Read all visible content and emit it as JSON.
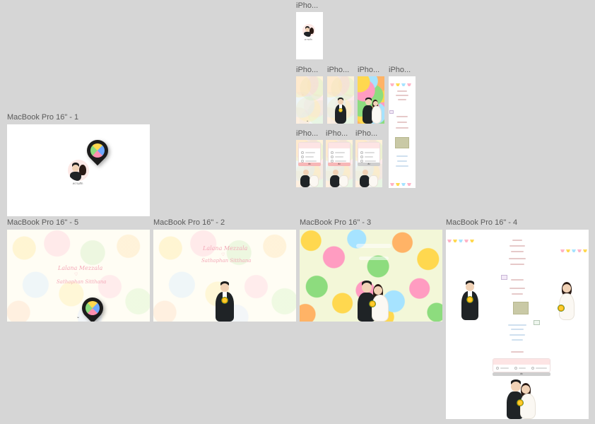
{
  "canvas": {
    "background": "#d6d6d6"
  },
  "frames": {
    "iphone_top": {
      "label": "iPho...",
      "avatar_caption": "ความรัก"
    },
    "iphone_r2a": {
      "label": "iPho..."
    },
    "iphone_r2b": {
      "label": "iPho..."
    },
    "iphone_r2c": {
      "label": "iPho..."
    },
    "iphone_r2d": {
      "label": "iPho..."
    },
    "iphone_r3a": {
      "label": "iPho...",
      "button": "ส่ง"
    },
    "iphone_r3b": {
      "label": "iPho...",
      "button": "ส่ง"
    },
    "iphone_r3c": {
      "label": "iPho...",
      "button": "ส่ง"
    },
    "macbook_1": {
      "label": "MacBook Pro 16\" - 1",
      "avatar_caption": "ความรัก"
    },
    "macbook_5": {
      "label": "MacBook Pro 16\" - 5",
      "line1": "Lalana Mezzala",
      "line2": "Sathaphan Sitthana"
    },
    "macbook_2": {
      "label": "MacBook Pro 16\" - 2",
      "line1": "Lalana Mezzala",
      "line2": "Sathaphan Sitthana"
    },
    "macbook_3": {
      "label": "MacBook Pro 16\" - 3"
    },
    "macbook_4": {
      "label": "MacBook Pro 16\" - 4",
      "button": "ส่ง"
    }
  },
  "colors": {
    "pink_text": "#f4a9b8",
    "card_header": "#fde4e4",
    "button_pink": "#f7b7b7",
    "button_grey": "#cfcfcf",
    "suit": "#1f2326"
  },
  "icons": [
    "map-pin-icon",
    "flower-pattern",
    "bunting-icon",
    "bouquet-icon",
    "envelope-icon",
    "heart-icon"
  ]
}
